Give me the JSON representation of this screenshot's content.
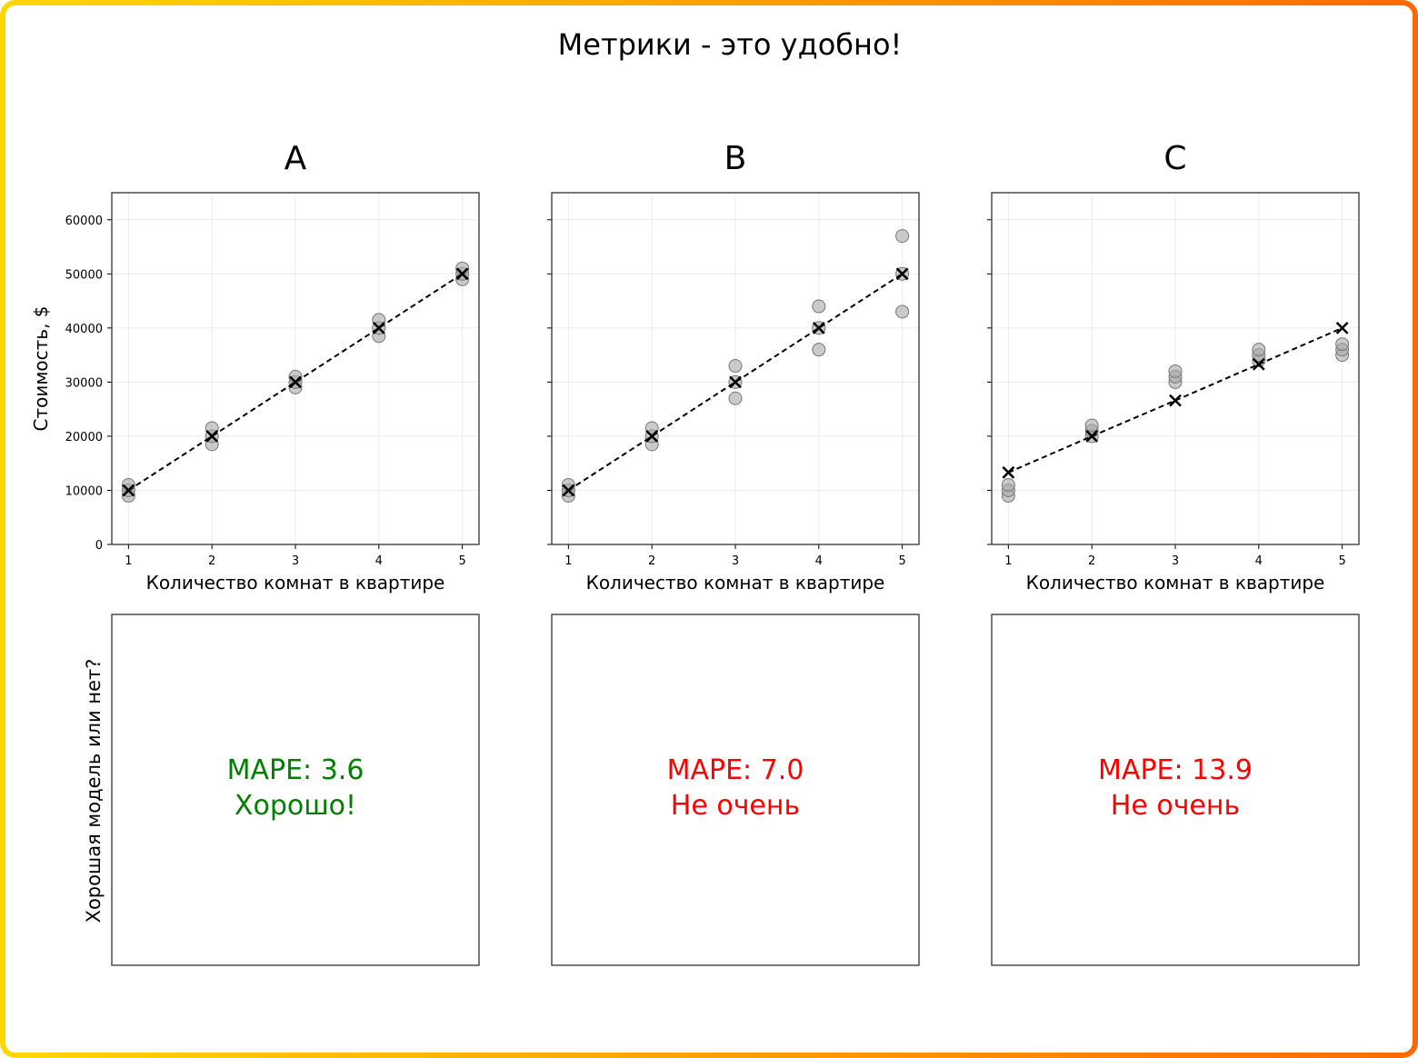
{
  "page": {
    "title": "Метрики - это удобно!",
    "y_label_bottom": "Хорошая модель или нет?",
    "border_colors": [
      "#ffd700",
      "#ff6a00"
    ]
  },
  "chart_data": [
    {
      "type": "scatter",
      "panel_title": "A",
      "xlabel": "Количество комнат в квартире",
      "ylabel": "Стоимость, $",
      "xlim": [
        0.8,
        5.2
      ],
      "ylim": [
        0,
        65000
      ],
      "x_ticks": [
        1,
        2,
        3,
        4,
        5
      ],
      "y_ticks": [
        0,
        10000,
        20000,
        30000,
        40000,
        50000,
        60000
      ],
      "grid": true,
      "observed": [
        {
          "x": 1,
          "values": [
            9000,
            10000,
            11000
          ]
        },
        {
          "x": 2,
          "values": [
            18500,
            20000,
            21500
          ]
        },
        {
          "x": 3,
          "values": [
            29000,
            30000,
            31000
          ]
        },
        {
          "x": 4,
          "values": [
            38500,
            40000,
            41500
          ]
        },
        {
          "x": 5,
          "values": [
            49000,
            50000,
            51000
          ]
        }
      ],
      "predicted": {
        "x": [
          1,
          2,
          3,
          4,
          5
        ],
        "y": [
          10000,
          20000,
          30000,
          40000,
          50000
        ]
      },
      "metric_label": "MAPE: 3.6",
      "verdict": "Хорошо!",
      "verdict_color": "#008000"
    },
    {
      "type": "scatter",
      "panel_title": "B",
      "xlabel": "Количество комнат в квартире",
      "ylabel": "",
      "xlim": [
        0.8,
        5.2
      ],
      "ylim": [
        0,
        65000
      ],
      "x_ticks": [
        1,
        2,
        3,
        4,
        5
      ],
      "y_ticks": [
        0,
        10000,
        20000,
        30000,
        40000,
        50000,
        60000
      ],
      "grid": true,
      "observed": [
        {
          "x": 1,
          "values": [
            9000,
            10000,
            11000
          ]
        },
        {
          "x": 2,
          "values": [
            18500,
            20000,
            21500
          ]
        },
        {
          "x": 3,
          "values": [
            27000,
            30000,
            33000
          ]
        },
        {
          "x": 4,
          "values": [
            36000,
            40000,
            44000
          ]
        },
        {
          "x": 5,
          "values": [
            43000,
            50000,
            57000
          ]
        }
      ],
      "predicted": {
        "x": [
          1,
          2,
          3,
          4,
          5
        ],
        "y": [
          10000,
          20000,
          30000,
          40000,
          50000
        ]
      },
      "metric_label": "MAPE: 7.0",
      "verdict": "Не очень",
      "verdict_color": "#ff0000"
    },
    {
      "type": "scatter",
      "panel_title": "C",
      "xlabel": "Количество комнат в квартире",
      "ylabel": "",
      "xlim": [
        0.8,
        5.2
      ],
      "ylim": [
        0,
        65000
      ],
      "x_ticks": [
        1,
        2,
        3,
        4,
        5
      ],
      "y_ticks": [
        0,
        10000,
        20000,
        30000,
        40000,
        50000,
        60000
      ],
      "grid": true,
      "observed": [
        {
          "x": 1,
          "values": [
            9000,
            10000,
            11000
          ]
        },
        {
          "x": 2,
          "values": [
            20000,
            21000,
            22000
          ]
        },
        {
          "x": 3,
          "values": [
            30000,
            31000,
            32000
          ]
        },
        {
          "x": 4,
          "values": [
            34000,
            35000,
            36000
          ]
        },
        {
          "x": 5,
          "values": [
            35000,
            36000,
            37000
          ]
        }
      ],
      "predicted": {
        "x": [
          1,
          2,
          3,
          4,
          5
        ],
        "y": [
          13300,
          20000,
          26600,
          33300,
          40000
        ]
      },
      "metric_label": "MAPE: 13.9",
      "verdict": "Не очень",
      "verdict_color": "#ff0000"
    }
  ]
}
